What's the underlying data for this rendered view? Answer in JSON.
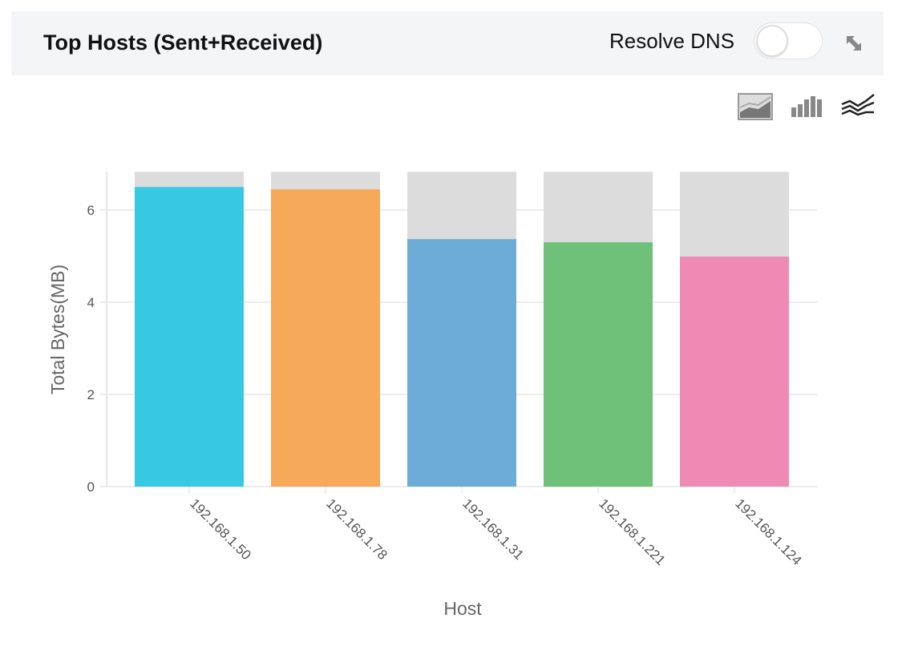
{
  "header": {
    "title": "Top Hosts (Sent+Received)",
    "resolve_dns_label": "Resolve DNS",
    "resolve_dns_on": false
  },
  "toolbar": {
    "icons": [
      "area-chart-icon",
      "bar-chart-icon",
      "line-chart-icon"
    ]
  },
  "chart_data": {
    "type": "bar",
    "stacked": true,
    "xlabel": "Host",
    "ylabel": "Total Bytes(MB)",
    "categories": [
      "192.168.1.50",
      "192.168.1.78",
      "192.168.1.31",
      "192.168.1.221",
      "192.168.1.124"
    ],
    "values": [
      6.5,
      6.45,
      5.37,
      5.3,
      4.99
    ],
    "background_max": 6.83,
    "colors": [
      "#36c9e1",
      "#f5a959",
      "#6eacd8",
      "#6fc078",
      "#ee8ab4"
    ],
    "background_color": "#dcdcdc",
    "ylim": [
      0,
      6.83
    ],
    "yticks": [
      0,
      2,
      4,
      6
    ],
    "grid": true
  }
}
